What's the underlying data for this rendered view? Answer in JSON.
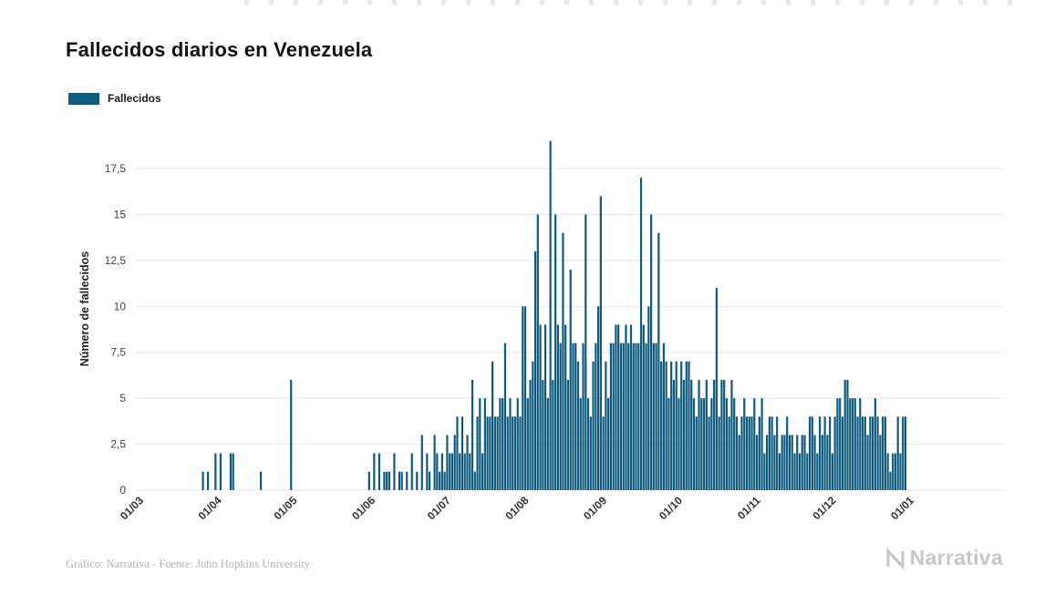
{
  "page": {
    "title": "Fallecidos diarios en Venezuela",
    "footer_credit": "Gráfico: Narrativa - Fuente: John Hopkins University",
    "brand": "Narrativa"
  },
  "legend": {
    "label": "Fallecidos",
    "swatch_color": "#0f5b7d"
  },
  "chart_data": {
    "type": "bar",
    "title": "Fallecidos diarios en Venezuela",
    "series_name": "Fallecidos",
    "xlabel": "",
    "ylabel": "Número de fallecidos",
    "bar_color": "#0f5b7d",
    "grid": true,
    "legend_position": "top-left",
    "ylim": [
      0,
      19
    ],
    "yticks": [
      0,
      2.5,
      5,
      7.5,
      10,
      12.5,
      15,
      17.5
    ],
    "ytick_labels": [
      "0",
      "2,5",
      "5",
      "7,5",
      "10",
      "12,5",
      "15",
      "17,5"
    ],
    "xtick_labels": [
      "01/03",
      "01/04",
      "01/05",
      "01/06",
      "01/07",
      "01/08",
      "01/09",
      "01/10",
      "01/11",
      "01/12",
      "01/01"
    ],
    "xtick_day_indices": [
      0,
      31,
      61,
      92,
      122,
      153,
      184,
      214,
      245,
      275,
      306
    ],
    "x_unit": "day",
    "values": [
      0,
      0,
      0,
      0,
      0,
      0,
      0,
      0,
      0,
      0,
      0,
      0,
      0,
      0,
      0,
      0,
      0,
      0,
      0,
      0,
      0,
      0,
      0,
      0,
      0,
      0,
      0,
      1,
      0,
      1,
      0,
      0,
      2,
      0,
      2,
      0,
      0,
      0,
      2,
      2,
      0,
      0,
      0,
      0,
      0,
      0,
      0,
      0,
      0,
      0,
      1,
      0,
      0,
      0,
      0,
      0,
      0,
      0,
      0,
      0,
      0,
      0,
      6,
      0,
      0,
      0,
      0,
      0,
      0,
      0,
      0,
      0,
      0,
      0,
      0,
      0,
      0,
      0,
      0,
      0,
      0,
      0,
      0,
      0,
      0,
      0,
      0,
      0,
      0,
      0,
      0,
      0,
      0,
      1,
      0,
      2,
      0,
      2,
      0,
      1,
      1,
      1,
      0,
      2,
      0,
      1,
      1,
      0,
      1,
      0,
      2,
      0,
      1,
      0,
      3,
      0,
      2,
      1,
      0,
      3,
      2,
      1,
      2,
      1,
      3,
      2,
      2,
      3,
      4,
      2,
      4,
      2,
      3,
      2,
      6,
      1,
      4,
      5,
      2,
      5,
      4,
      4,
      7,
      4,
      4,
      5,
      5,
      8,
      4,
      5,
      4,
      4,
      5,
      4,
      10,
      10,
      5,
      6,
      7,
      13,
      15,
      9,
      6,
      9,
      5,
      19,
      6,
      15,
      9,
      8,
      14,
      9,
      6,
      12,
      8,
      8,
      7,
      5,
      8,
      15,
      5,
      4,
      7,
      8,
      10,
      16,
      4,
      7,
      5,
      8,
      8,
      9,
      9,
      8,
      8,
      9,
      8,
      9,
      8,
      8,
      8,
      17,
      9,
      8,
      10,
      15,
      8,
      8,
      14,
      7,
      8,
      7,
      5,
      7,
      6,
      7,
      5,
      7,
      6,
      7,
      7,
      6,
      5,
      4,
      6,
      5,
      5,
      6,
      4,
      5,
      6,
      11,
      4,
      6,
      6,
      5,
      4,
      6,
      5,
      4,
      3,
      4,
      5,
      4,
      4,
      4,
      5,
      3,
      4,
      5,
      2,
      3,
      4,
      4,
      3,
      4,
      2,
      3,
      3,
      4,
      3,
      3,
      2,
      3,
      2,
      3,
      3,
      2,
      4,
      4,
      3,
      2,
      4,
      3,
      4,
      3,
      4,
      2,
      4,
      5,
      5,
      4,
      6,
      6,
      5,
      5,
      5,
      4,
      5,
      4,
      4,
      3,
      4,
      4,
      5,
      4,
      3,
      4,
      4,
      2,
      1,
      2,
      2,
      4,
      2,
      4,
      4
    ]
  }
}
